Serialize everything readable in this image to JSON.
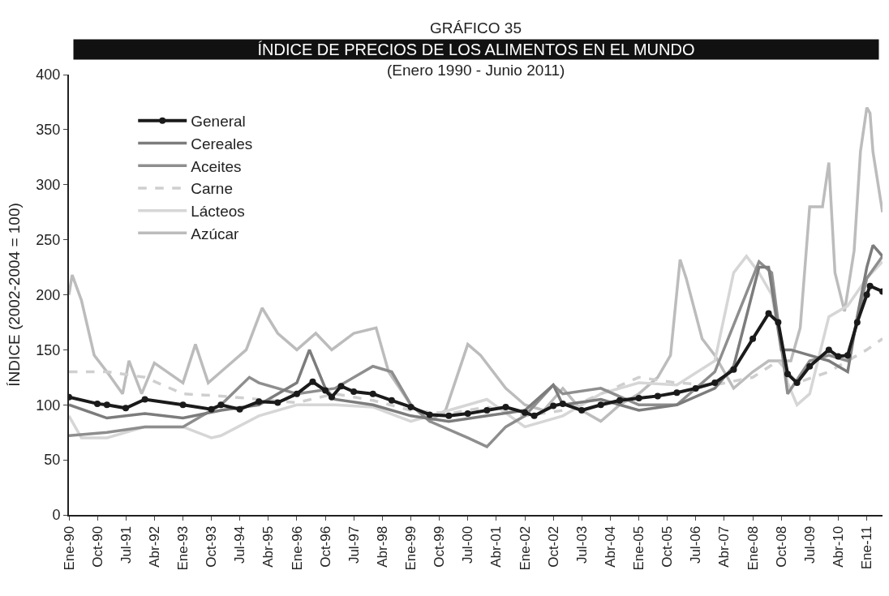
{
  "chart_data": {
    "type": "line",
    "title": "GRÁFICO 35",
    "subtitle": "ÍNDICE DE PRECIOS DE LOS ALIMENTOS EN EL MUNDO",
    "annotations": [
      "(Enero 1990 - Junio 2011)"
    ],
    "ylabel": "ÍNDICE (2002-2004 = 100)",
    "xlim": [
      "1990-01",
      "2011-06"
    ],
    "xticks": [
      {
        "value": "1990-01",
        "label": "Ene-90"
      },
      {
        "value": "1990-10",
        "label": "Oct-90"
      },
      {
        "value": "1991-07",
        "label": "Jul-91"
      },
      {
        "value": "1992-04",
        "label": "Abr-92"
      },
      {
        "value": "1993-01",
        "label": "Ene-93"
      },
      {
        "value": "1993-10",
        "label": "Oct-93"
      },
      {
        "value": "1994-07",
        "label": "Jul-94"
      },
      {
        "value": "1995-04",
        "label": "Abr-95"
      },
      {
        "value": "1996-01",
        "label": "Ene-96"
      },
      {
        "value": "1996-10",
        "label": "Oct-96"
      },
      {
        "value": "1997-07",
        "label": "Jul-97"
      },
      {
        "value": "1998-04",
        "label": "Abr-98"
      },
      {
        "value": "1999-01",
        "label": "Ene-99"
      },
      {
        "value": "1999-10",
        "label": "Oct-99"
      },
      {
        "value": "2000-07",
        "label": "Jul-00"
      },
      {
        "value": "2001-04",
        "label": "Abr-01"
      },
      {
        "value": "2002-01",
        "label": "Ene-02"
      },
      {
        "value": "2002-10",
        "label": "Oct-02"
      },
      {
        "value": "2003-07",
        "label": "Jul-03"
      },
      {
        "value": "2004-04",
        "label": "Abr-04"
      },
      {
        "value": "2005-01",
        "label": "Ene-05"
      },
      {
        "value": "2005-10",
        "label": "Oct-05"
      },
      {
        "value": "2006-07",
        "label": "Jul-06"
      },
      {
        "value": "2007-04",
        "label": "Abr-07"
      },
      {
        "value": "2008-01",
        "label": "Ene-08"
      },
      {
        "value": "2008-10",
        "label": "Oct-08"
      },
      {
        "value": "2009-07",
        "label": "Jul-09"
      },
      {
        "value": "2010-04",
        "label": "Abr-10"
      },
      {
        "value": "2011-01",
        "label": "Ene-11"
      }
    ],
    "ylim": [
      0,
      400
    ],
    "yticks": [
      0,
      50,
      100,
      150,
      200,
      250,
      300,
      350,
      400
    ],
    "legend": "top left",
    "series": [
      {
        "name": "Azúcar",
        "color": "#bcbcbc",
        "marker": "none",
        "line_style": "solid",
        "x": [
          "1990-01",
          "1990-02",
          "1990-05",
          "1990-09",
          "1991-01",
          "1991-06",
          "1991-08",
          "1991-12",
          "1992-04",
          "1993-01",
          "1993-05",
          "1993-09",
          "1994-01",
          "1994-09",
          "1995-02",
          "1995-07",
          "1996-01",
          "1996-07",
          "1996-12",
          "1997-07",
          "1998-02",
          "1998-06",
          "1999-01",
          "1999-07",
          "1999-12",
          "2000-07",
          "2000-11",
          "2001-07",
          "2002-01",
          "2002-07",
          "2003-01",
          "2003-07",
          "2004-01",
          "2004-07",
          "2005-01",
          "2005-07",
          "2005-11",
          "2006-02",
          "2006-04",
          "2006-09",
          "2007-01",
          "2007-07",
          "2008-01",
          "2008-06",
          "2009-01",
          "2009-04",
          "2009-07",
          "2009-11",
          "2010-01",
          "2010-03",
          "2010-06",
          "2010-09",
          "2010-11",
          "2011-01",
          "2011-02",
          "2011-03",
          "2011-06"
        ],
        "values": [
          200,
          218,
          195,
          145,
          130,
          110,
          140,
          110,
          138,
          120,
          155,
          120,
          130,
          150,
          188,
          165,
          150,
          165,
          150,
          165,
          170,
          130,
          100,
          85,
          95,
          155,
          145,
          115,
          100,
          95,
          115,
          95,
          85,
          100,
          110,
          125,
          145,
          232,
          215,
          160,
          145,
          115,
          130,
          140,
          140,
          170,
          280,
          280,
          320,
          220,
          185,
          240,
          330,
          370,
          365,
          330,
          275
        ]
      },
      {
        "name": "Lácteos",
        "color": "#d6d6d6",
        "marker": "none",
        "line_style": "solid",
        "x": [
          "1990-01",
          "1990-05",
          "1991-01",
          "1992-01",
          "1993-01",
          "1993-10",
          "1994-01",
          "1995-01",
          "1996-01",
          "1997-01",
          "1998-01",
          "1999-01",
          "2000-01",
          "2001-01",
          "2002-01",
          "2003-01",
          "2004-01",
          "2005-01",
          "2006-01",
          "2007-01",
          "2007-07",
          "2007-11",
          "2008-03",
          "2008-07",
          "2008-12",
          "2009-03",
          "2009-07",
          "2010-01",
          "2010-07",
          "2011-01",
          "2011-06"
        ],
        "values": [
          90,
          70,
          70,
          80,
          80,
          70,
          72,
          90,
          100,
          100,
          98,
          85,
          95,
          105,
          80,
          90,
          110,
          120,
          118,
          140,
          220,
          235,
          220,
          200,
          120,
          100,
          110,
          180,
          190,
          215,
          230
        ]
      },
      {
        "name": "Carne",
        "color": "#cfcfcf",
        "marker": "none",
        "line_style": "dashed",
        "x": [
          "1990-01",
          "1991-01",
          "1992-01",
          "1993-01",
          "1994-01",
          "1995-01",
          "1996-01",
          "1997-01",
          "1998-01",
          "1999-01",
          "2000-01",
          "2001-01",
          "2002-01",
          "2003-01",
          "2004-01",
          "2005-01",
          "2006-01",
          "2007-01",
          "2008-01",
          "2008-09",
          "2009-03",
          "2010-01",
          "2010-07",
          "2011-01",
          "2011-06"
        ],
        "values": [
          130,
          130,
          125,
          110,
          108,
          105,
          102,
          110,
          104,
          95,
          92,
          98,
          90,
          95,
          110,
          125,
          120,
          118,
          125,
          140,
          120,
          130,
          140,
          150,
          160
        ]
      },
      {
        "name": "Aceites",
        "color": "#8e8e8e",
        "marker": "none",
        "line_style": "solid",
        "x": [
          "1990-01",
          "1991-01",
          "1992-01",
          "1993-01",
          "1994-01",
          "1994-10",
          "1995-01",
          "1996-01",
          "1997-01",
          "1998-01",
          "1998-07",
          "1999-01",
          "1999-07",
          "2000-07",
          "2001-01",
          "2001-07",
          "2002-01",
          "2002-10",
          "2003-01",
          "2004-01",
          "2005-01",
          "2006-01",
          "2007-01",
          "2008-03",
          "2008-07",
          "2008-12",
          "2009-07",
          "2010-01",
          "2010-07",
          "2011-01",
          "2011-06"
        ],
        "values": [
          72,
          75,
          80,
          80,
          100,
          125,
          120,
          110,
          115,
          135,
          130,
          100,
          85,
          70,
          62,
          80,
          90,
          118,
          110,
          115,
          100,
          100,
          130,
          230,
          220,
          110,
          140,
          145,
          140,
          215,
          235
        ]
      },
      {
        "name": "Cereales",
        "color": "#7c7c7c",
        "marker": "none",
        "line_style": "solid",
        "x": [
          "1990-01",
          "1991-01",
          "1992-01",
          "1993-01",
          "1994-01",
          "1995-01",
          "1996-01",
          "1996-05",
          "1996-10",
          "1997-01",
          "1998-01",
          "1999-01",
          "2000-01",
          "2001-01",
          "2002-01",
          "2002-10",
          "2003-01",
          "2004-01",
          "2005-01",
          "2006-01",
          "2007-01",
          "2007-07",
          "2008-03",
          "2008-06",
          "2008-10",
          "2009-01",
          "2009-07",
          "2010-01",
          "2010-07",
          "2010-10",
          "2011-01",
          "2011-03",
          "2011-06"
        ],
        "values": [
          100,
          88,
          92,
          88,
          95,
          100,
          120,
          150,
          115,
          105,
          100,
          90,
          85,
          90,
          95,
          118,
          100,
          105,
          95,
          100,
          115,
          135,
          225,
          225,
          150,
          150,
          145,
          140,
          130,
          180,
          225,
          245,
          235
        ]
      },
      {
        "name": "General",
        "color": "#1a1a1a",
        "marker": "circle",
        "line_style": "solid",
        "x": [
          "1990-01",
          "1990-10",
          "1991-01",
          "1991-07",
          "1992-01",
          "1993-01",
          "1993-10",
          "1994-01",
          "1994-07",
          "1995-01",
          "1995-07",
          "1996-01",
          "1996-06",
          "1996-10",
          "1996-12",
          "1997-03",
          "1997-07",
          "1998-01",
          "1998-07",
          "1999-01",
          "1999-07",
          "2000-01",
          "2000-07",
          "2001-01",
          "2001-07",
          "2002-01",
          "2002-04",
          "2002-10",
          "2003-01",
          "2003-07",
          "2004-01",
          "2004-07",
          "2005-01",
          "2005-07",
          "2006-01",
          "2006-07",
          "2007-01",
          "2007-07",
          "2008-01",
          "2008-06",
          "2008-09",
          "2008-12",
          "2009-03",
          "2009-07",
          "2010-01",
          "2010-04",
          "2010-07",
          "2010-10",
          "2011-01",
          "2011-02",
          "2011-06"
        ],
        "values": [
          107,
          101,
          100,
          97,
          105,
          100,
          96,
          100,
          96,
          103,
          102,
          110,
          121,
          113,
          107,
          117,
          112,
          110,
          104,
          98,
          91,
          90,
          92,
          95,
          98,
          93,
          90,
          99,
          101,
          95,
          100,
          104,
          106,
          108,
          111,
          115,
          120,
          132,
          160,
          183,
          175,
          128,
          120,
          135,
          150,
          144,
          145,
          175,
          200,
          208,
          203
        ]
      }
    ]
  }
}
